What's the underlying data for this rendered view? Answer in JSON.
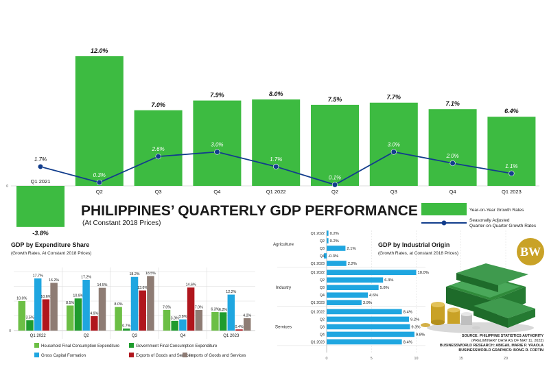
{
  "title": "PHILIPPINES’ QUARTERLY GDP PERFORMANCE",
  "subtitle": "(At Constant 2018 Prices)",
  "legend_main": {
    "yoy": "Year-on-Year Growth Rates",
    "sa_line1": "Seasonally Adjusted",
    "sa_line2": "Quarter-on-Quarter Growth Rates"
  },
  "colors": {
    "green": "#3dbb41",
    "green_dark": "#1f9c2e",
    "navy": "#123d8c",
    "blue": "#1fa6e0",
    "red": "#b0161d",
    "brown": "#8e7c74",
    "grid": "#d9d9d9"
  },
  "expenditure": {
    "title": "GDP by Expenditure Share",
    "subtitle": "(Growth Rates, At Constant 2018 Prices)"
  },
  "industry": {
    "title": "GDP by Industrial Origin",
    "subtitle": "(Growth Rates, at Constant 2018 Prices)"
  },
  "logo": "BW",
  "credits": {
    "source": "SOURCE: PHILIPPINE STATISTICS AUTHORITY",
    "source2": "(PRELIMINARY DATA AS OF MAY 11, 2023)",
    "research": "BUSINESSWORLD RESEARCH: ABIGAIL MARIE P. YRAOLA",
    "graphics": "BUSINESSWORLD GRAPHICS: BONG R. FORTIN"
  },
  "chart_data": [
    {
      "type": "bar",
      "id": "quarterly",
      "categories": [
        "Q1 2021",
        "Q2",
        "Q3",
        "Q4",
        "Q1 2022",
        "Q2",
        "Q3",
        "Q4",
        "Q1 2023"
      ],
      "series": [
        {
          "name": "Year-on-Year Growth Rates",
          "type": "bar",
          "values": [
            -3.8,
            12.0,
            7.0,
            7.9,
            8.0,
            7.5,
            7.7,
            7.1,
            6.4
          ],
          "labels": [
            "-3.8%",
            "12.0%",
            "7.0%",
            "7.9%",
            "8.0%",
            "7.5%",
            "7.7%",
            "7.1%",
            "6.4%"
          ]
        },
        {
          "name": "Seasonally Adjusted Quarter-on-Quarter Growth Rates",
          "type": "line",
          "values": [
            1.7,
            0.3,
            2.6,
            3.0,
            1.7,
            0.1,
            3.0,
            2.0,
            1.1
          ],
          "labels": [
            "1.7%",
            "0.3%",
            "2.6%",
            "3.0%",
            "1.7%",
            "0.1%",
            "3.0%",
            "2.0%",
            "1.1%"
          ]
        }
      ],
      "zero_label": "0"
    },
    {
      "type": "bar",
      "id": "expenditure",
      "categories": [
        "Q1 2022",
        "Q2",
        "Q3",
        "Q4",
        "Q1 2023"
      ],
      "ylim": [
        0,
        20
      ],
      "grid": true,
      "series": [
        {
          "name": "Household Final Consumption Expenditure",
          "values": [
            10.0,
            8.5,
            8.0,
            7.0,
            6.3
          ],
          "labels": [
            "10.0%",
            "8.5%",
            "8.0%",
            "7.0%",
            "6.3%"
          ]
        },
        {
          "name": "Government Final Consumption Expenditure",
          "values": [
            3.5,
            10.9,
            0.7,
            3.3,
            6.2
          ],
          "labels": [
            "3.5%",
            "10.9%",
            "0.7%",
            "3.3%",
            "6.2%"
          ]
        },
        {
          "name": "Gross Capital Formation",
          "values": [
            17.7,
            17.2,
            18.2,
            3.8,
            12.2
          ],
          "labels": [
            "17.7%",
            "17.2%",
            "18.2%",
            "3.8%",
            "12.2%"
          ]
        },
        {
          "name": "Exports of Goods and Services",
          "values": [
            10.6,
            4.9,
            13.6,
            14.6,
            0.4
          ],
          "labels": [
            "10.6%",
            "4.9%",
            "13.6%",
            "14.6%",
            "0.4%"
          ]
        },
        {
          "name": "Imports of Goods and Services",
          "values": [
            16.2,
            14.5,
            18.5,
            7.0,
            4.2
          ],
          "labels": [
            "16.2%",
            "14.5%",
            "18.5%",
            "7.0%",
            "4.2%"
          ]
        }
      ],
      "zero_label": "0"
    },
    {
      "type": "bar",
      "id": "industry",
      "orientation": "horizontal",
      "xlim": [
        0,
        20
      ],
      "ticks": [
        "0",
        "5",
        "10",
        "15",
        "20"
      ],
      "groups": [
        {
          "name": "Agriculture",
          "rows": [
            {
              "label": "Q1 2022",
              "value": 0.2,
              "text": "0.2%"
            },
            {
              "label": "Q2",
              "value": 0.2,
              "text": "0.2%"
            },
            {
              "label": "Q3",
              "value": 2.1,
              "text": "2.1%"
            },
            {
              "label": "Q4",
              "value": -0.3,
              "text": "-0.3%"
            },
            {
              "label": "Q1 2023",
              "value": 2.2,
              "text": "2.2%"
            }
          ]
        },
        {
          "name": "Industry",
          "rows": [
            {
              "label": "Q1 2022",
              "value": 10.0,
              "text": "10.0%"
            },
            {
              "label": "Q2",
              "value": 6.3,
              "text": "6.3%"
            },
            {
              "label": "Q3",
              "value": 5.8,
              "text": "5.8%"
            },
            {
              "label": "Q4",
              "value": 4.6,
              "text": "4.6%"
            },
            {
              "label": "Q1 2023",
              "value": 3.9,
              "text": "3.9%"
            }
          ]
        },
        {
          "name": "Services",
          "rows": [
            {
              "label": "Q1 2022",
              "value": 8.4,
              "text": "8.4%"
            },
            {
              "label": "Q2",
              "value": 9.2,
              "text": "9.2%"
            },
            {
              "label": "Q3",
              "value": 9.3,
              "text": "9.3%"
            },
            {
              "label": "Q4",
              "value": 9.8,
              "text": "9.8%"
            },
            {
              "label": "Q1 2023",
              "value": 8.4,
              "text": "8.4%"
            }
          ]
        }
      ]
    }
  ]
}
